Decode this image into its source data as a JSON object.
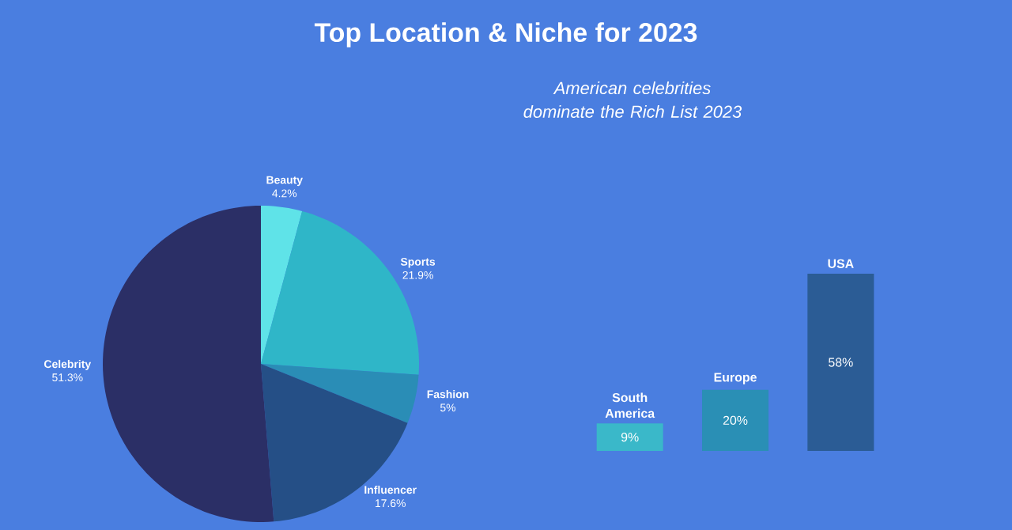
{
  "chart_data": [
    {
      "type": "pie",
      "title": "Top Location & Niche for 2023",
      "categories": [
        "Beauty",
        "Sports",
        "Fashion",
        "Influencer",
        "Celebrity"
      ],
      "values": [
        4.2,
        21.9,
        5,
        17.6,
        51.3
      ],
      "value_labels": [
        "4.2%",
        "21.9%",
        "5%",
        "17.6%",
        "51.3%"
      ],
      "colors": [
        "#5fe3e8",
        "#2fb6c8",
        "#2a8db6",
        "#254f86",
        "#2b2f66"
      ]
    },
    {
      "type": "bar",
      "title": "American celebrities dominate the Rich List 2023",
      "categories": [
        "South America",
        "Europe",
        "USA"
      ],
      "values": [
        9,
        20,
        58
      ],
      "value_labels": [
        "9%",
        "20%",
        "58%"
      ],
      "colors": [
        "#3ab8c9",
        "#2a8fb5",
        "#2b5c95"
      ]
    }
  ]
}
